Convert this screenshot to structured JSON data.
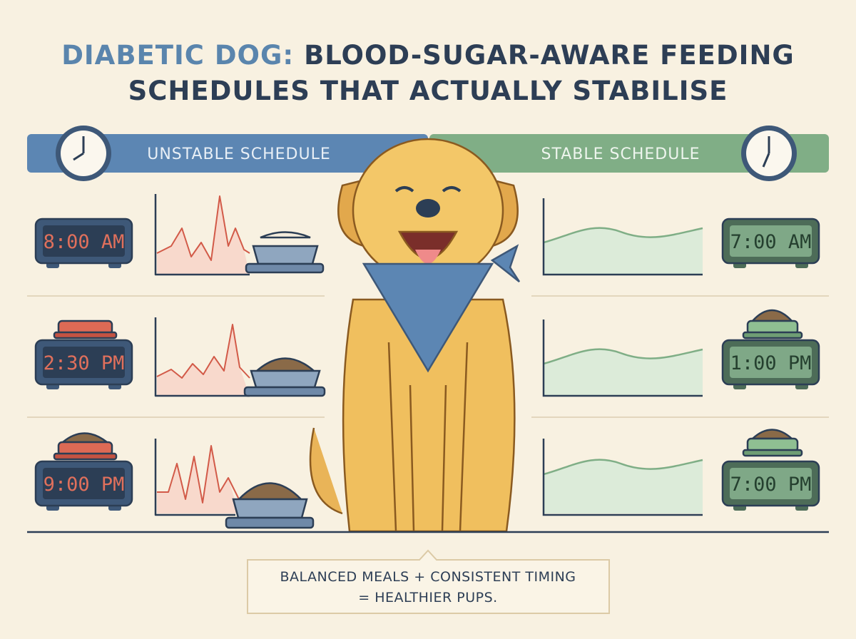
{
  "title": {
    "lead": "DIABETIC DOG:",
    "line1": "BLOOD-SUGAR-AWARE FEEDING",
    "line2": "SCHEDULES THAT ACTUALLY STABILISE"
  },
  "panels": [
    {
      "heading": "UNSTABLE SCHEDULE",
      "times": [
        "8:00 AM",
        "2:30 PM",
        "9:00 PM"
      ]
    },
    {
      "heading": "STABLE SCHEDULE",
      "times": [
        "7:00 AM",
        "1:00 PM",
        "7:00 PM"
      ]
    }
  ],
  "caption": [
    "BALANCED MEALS + CONSISTENT TIMING",
    "= HEALTHIER PUPS."
  ]
}
